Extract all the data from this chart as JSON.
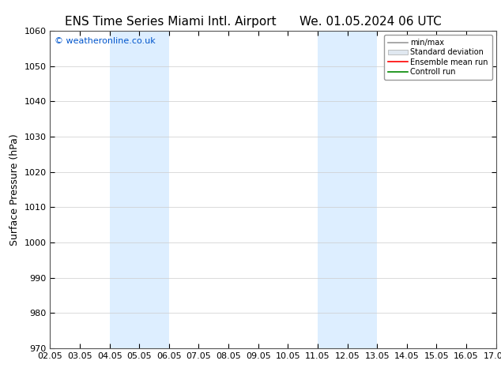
{
  "title_left": "ENS Time Series Miami Intl. Airport",
  "title_right": "We. 01.05.2024 06 UTC",
  "ylabel": "Surface Pressure (hPa)",
  "xlim": [
    0,
    15
  ],
  "ylim": [
    970,
    1060
  ],
  "yticks": [
    970,
    980,
    990,
    1000,
    1010,
    1020,
    1030,
    1040,
    1050,
    1060
  ],
  "xtick_labels": [
    "02.05",
    "03.05",
    "04.05",
    "05.05",
    "06.05",
    "07.05",
    "08.05",
    "09.05",
    "10.05",
    "11.05",
    "12.05",
    "13.05",
    "14.05",
    "15.05",
    "16.05",
    "17.05"
  ],
  "xtick_positions": [
    0,
    1,
    2,
    3,
    4,
    5,
    6,
    7,
    8,
    9,
    10,
    11,
    12,
    13,
    14,
    15
  ],
  "shaded_regions": [
    {
      "x_start": 2.0,
      "x_end": 4.0
    },
    {
      "x_start": 9.0,
      "x_end": 11.0
    }
  ],
  "shaded_color": "#ddeeff",
  "watermark": "© weatheronline.co.uk",
  "watermark_color": "#0055cc",
  "legend_entries": [
    {
      "label": "min/max",
      "color": "#999999",
      "style": "line"
    },
    {
      "label": "Standard deviation",
      "color": "#cccccc",
      "style": "band"
    },
    {
      "label": "Ensemble mean run",
      "color": "#ff0000",
      "style": "line"
    },
    {
      "label": "Controll run",
      "color": "#008800",
      "style": "line"
    }
  ],
  "background_color": "#ffffff",
  "grid_color": "#cccccc",
  "tick_label_fontsize": 8,
  "axis_label_fontsize": 9,
  "title_fontsize": 11
}
